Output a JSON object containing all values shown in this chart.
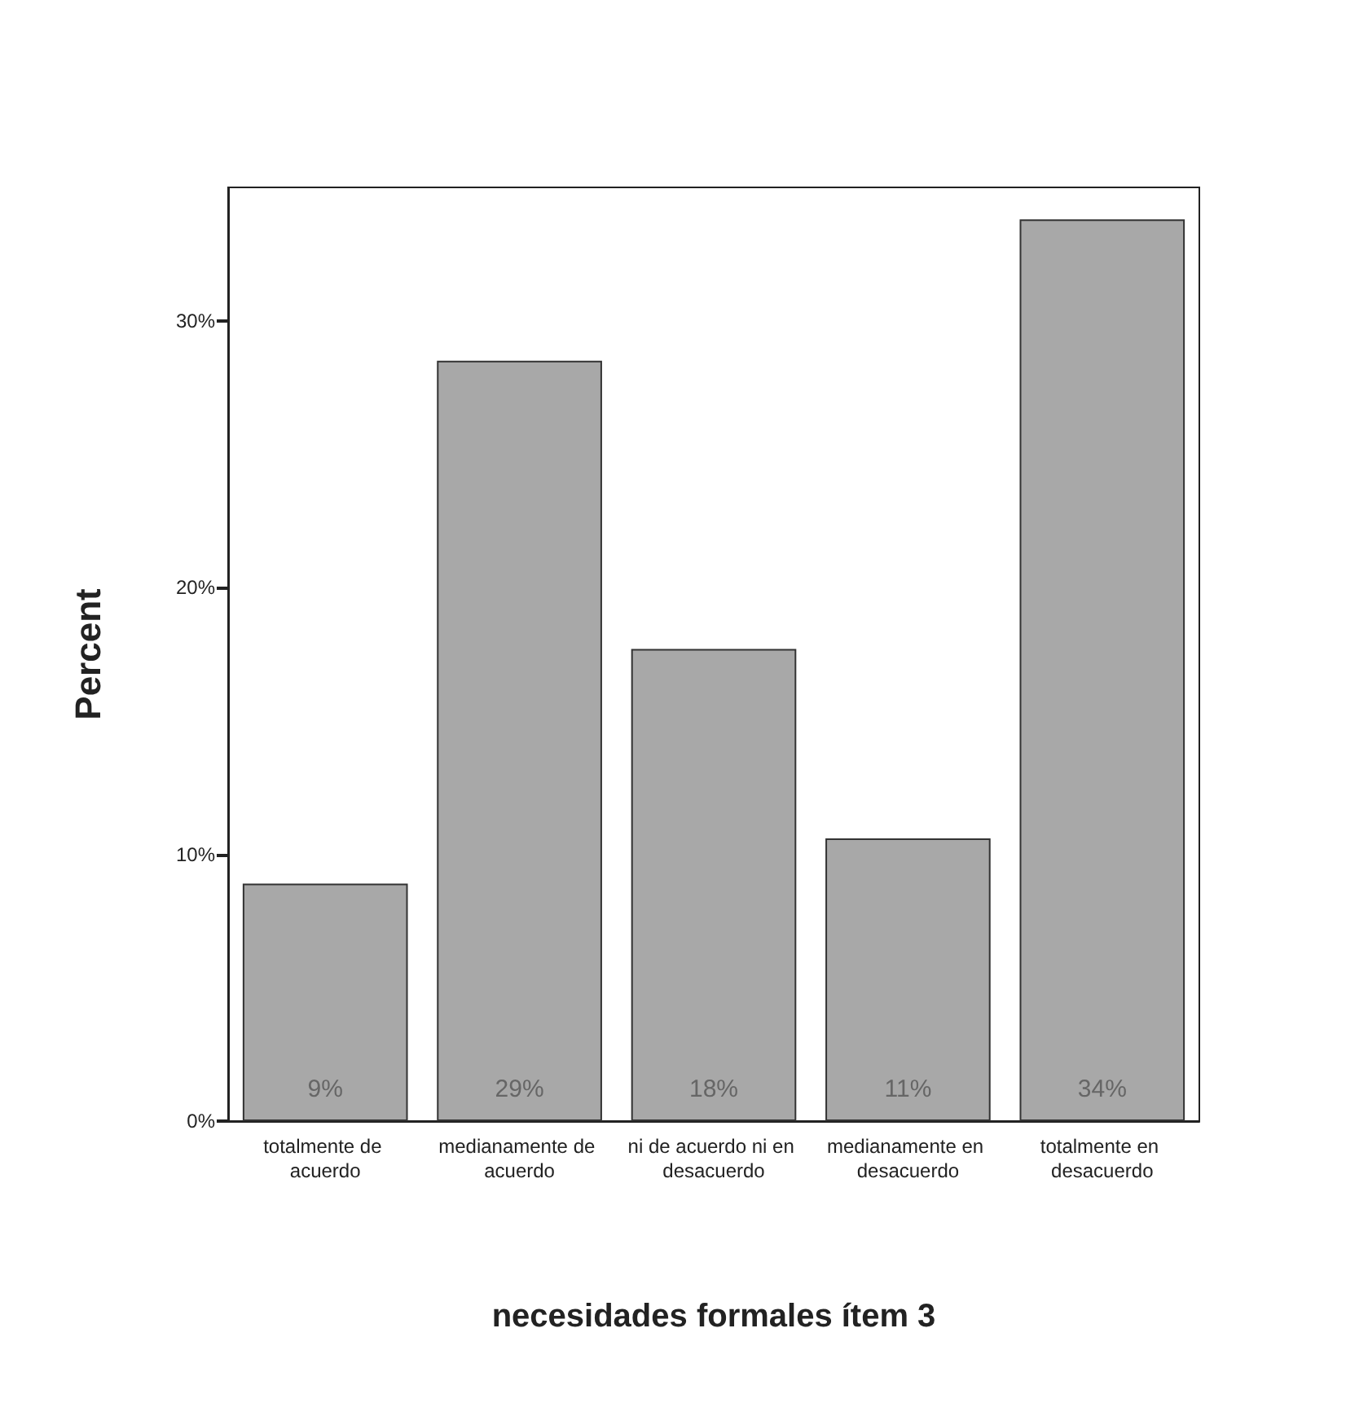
{
  "chart_data": {
    "type": "bar",
    "xlabel": "necesidades formales ítem 3",
    "ylabel": "Percent",
    "categories": [
      "totalmente de acuerdo",
      "medianamente de acuerdo",
      "ni de acuerdo ni en desacuerdo",
      "medianamente en desacuerdo",
      "totalmente en desacuerdo"
    ],
    "values": [
      8.9,
      28.5,
      17.7,
      10.6,
      33.8
    ],
    "value_labels": [
      "9%",
      "29%",
      "18%",
      "11%",
      "34%"
    ],
    "color": "#a8a8a8",
    "ylim": [
      0,
      35
    ],
    "yticks": [
      {
        "value": 0,
        "label": "0%"
      },
      {
        "value": 10,
        "label": "10%"
      },
      {
        "value": 20,
        "label": "20%"
      },
      {
        "value": 30,
        "label": "30%"
      }
    ],
    "grid": false
  }
}
